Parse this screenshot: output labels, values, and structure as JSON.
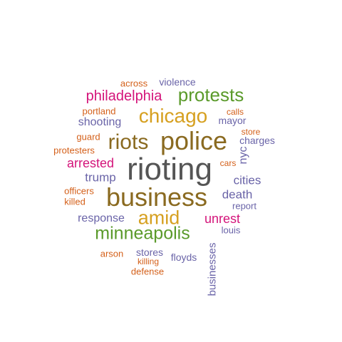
{
  "palette": {
    "gray": "#555555",
    "brown": "#8a6a20",
    "gold": "#d6a020",
    "green": "#5a9a2a",
    "magenta": "#d4147a",
    "purple": "#6a64a8",
    "orange": "#d4601a"
  },
  "words": [
    {
      "text": "rioting",
      "color": "gray"
    },
    {
      "text": "business",
      "color": "brown"
    },
    {
      "text": "police",
      "color": "brown"
    },
    {
      "text": "riots",
      "color": "brown"
    },
    {
      "text": "chicago",
      "color": "gold"
    },
    {
      "text": "amid",
      "color": "gold"
    },
    {
      "text": "minneapolis",
      "color": "green"
    },
    {
      "text": "protests",
      "color": "green"
    },
    {
      "text": "philadelphia",
      "color": "magenta"
    },
    {
      "text": "arrested",
      "color": "magenta"
    },
    {
      "text": "unrest",
      "color": "magenta"
    },
    {
      "text": "cities",
      "color": "purple"
    },
    {
      "text": "death",
      "color": "purple"
    },
    {
      "text": "trump",
      "color": "purple"
    },
    {
      "text": "shooting",
      "color": "purple"
    },
    {
      "text": "response",
      "color": "purple"
    },
    {
      "text": "nyc",
      "color": "purple"
    },
    {
      "text": "violence",
      "color": "purple"
    },
    {
      "text": "mayor",
      "color": "purple"
    },
    {
      "text": "charges",
      "color": "purple"
    },
    {
      "text": "businesses",
      "color": "purple"
    },
    {
      "text": "floyds",
      "color": "purple"
    },
    {
      "text": "stores",
      "color": "purple"
    },
    {
      "text": "report",
      "color": "purple"
    },
    {
      "text": "louis",
      "color": "purple"
    },
    {
      "text": "across",
      "color": "orange"
    },
    {
      "text": "portland",
      "color": "orange"
    },
    {
      "text": "calls",
      "color": "orange"
    },
    {
      "text": "guard",
      "color": "orange"
    },
    {
      "text": "store",
      "color": "orange"
    },
    {
      "text": "protesters",
      "color": "orange"
    },
    {
      "text": "cars",
      "color": "orange"
    },
    {
      "text": "officers",
      "color": "orange"
    },
    {
      "text": "killed",
      "color": "orange"
    },
    {
      "text": "arson",
      "color": "orange"
    },
    {
      "text": "killing",
      "color": "orange"
    },
    {
      "text": "defense",
      "color": "orange"
    }
  ]
}
